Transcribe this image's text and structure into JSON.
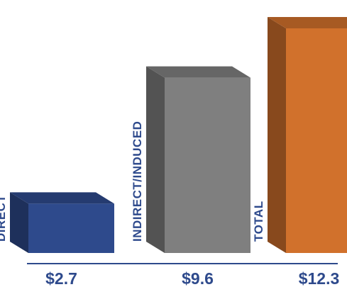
{
  "chart_data": {
    "type": "bar",
    "title": "",
    "xlabel": "",
    "ylabel": "",
    "categories": [
      "DIRECT",
      "INDIRECT/INDUCED",
      "TOTAL"
    ],
    "values": [
      2.7,
      9.6,
      12.3
    ],
    "value_labels": [
      "$2.7",
      "$9.6",
      "$12.3"
    ],
    "ylim": [
      0,
      12.3
    ],
    "grid": false,
    "legend": "none",
    "bar_style": "3d",
    "colors": {
      "bars": [
        "#2e4a8c",
        "#7f7f7f",
        "#d1712c"
      ],
      "label_text": "#2e4a8c",
      "baseline": "#2e4a8c"
    }
  }
}
